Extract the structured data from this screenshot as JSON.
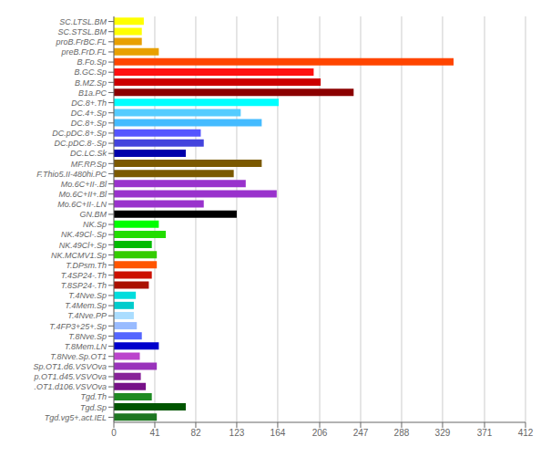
{
  "chart_data": {
    "type": "bar",
    "orientation": "horizontal",
    "categories": [
      "SC.LTSL.BM",
      "SC.STSL.BM",
      "proB.FrBC.FL",
      "preB.FrD.FL",
      "B.Fo.Sp",
      "B.GC.Sp",
      "B.MZ.Sp",
      "B1a.PC",
      "DC.8+.Th",
      "DC.4+.Sp",
      "DC.8+.Sp",
      "DC.pDC.8+.Sp",
      "DC.pDC.8-.Sp",
      "DC.LC.Sk",
      "MF.RP.Sp",
      "F.Thio5.II-480hi.PC",
      "Mo.6C+II-.Bl",
      "Mo.6C+II+.Bl",
      "Mo.6C+II-.LN",
      "GN.BM",
      "NK.Sp",
      "NK.49Cl-.Sp",
      "NK.49Cl+.Sp",
      "NK.MCMV1.Sp",
      "T.DPsm.Th",
      "T.4SP24-.Th",
      "T.8SP24-.Th",
      "T.4Nve.Sp",
      "T.4Mem.Sp",
      "T.4Nve.PP",
      "T.4FP3+25+.Sp",
      "T.8Nve.Sp",
      "T.8Mem.LN",
      "T.8Nve.Sp.OT1",
      "Sp.OT1.d6.VSVOva",
      "p.OT1.d45.VSVOva",
      ".OT1.d106.VSVOva",
      "Tgd.Th",
      "Tgd.Sp",
      "Tgd.vg5+.act.IEL"
    ],
    "values": [
      30,
      28,
      28,
      45,
      340,
      200,
      207,
      240,
      165,
      127,
      148,
      87,
      90,
      72,
      148,
      120,
      132,
      163,
      90,
      123,
      45,
      52,
      38,
      43,
      43,
      38,
      35,
      22,
      20,
      20,
      23,
      28,
      45,
      26,
      43,
      27,
      32,
      38,
      72,
      43
    ],
    "colors": [
      "#FFFF00",
      "#FFFF00",
      "#E8A000",
      "#E8A000",
      "#FF4500",
      "#FF1111",
      "#CC0000",
      "#8B0000",
      "#00FFFF",
      "#55CCFF",
      "#44BBFF",
      "#5555FF",
      "#4444DD",
      "#0000AA",
      "#7B5900",
      "#7B5900",
      "#9932CC",
      "#9932CC",
      "#9932CC",
      "#000000",
      "#00FF00",
      "#22DD00",
      "#00BB00",
      "#33CC00",
      "#FF5500",
      "#CC1100",
      "#AA1100",
      "#00DDDD",
      "#00CCCC",
      "#AADDFF",
      "#99BBFF",
      "#5566FF",
      "#0000CC",
      "#BB44CC",
      "#9933BB",
      "#882299",
      "#771188",
      "#1E8B22",
      "#005500",
      "#1E7722"
    ],
    "xlim": [
      0,
      412
    ],
    "xticks": [
      0,
      41,
      82,
      123,
      164,
      206,
      247,
      288,
      329,
      371,
      412
    ],
    "grid": true
  }
}
